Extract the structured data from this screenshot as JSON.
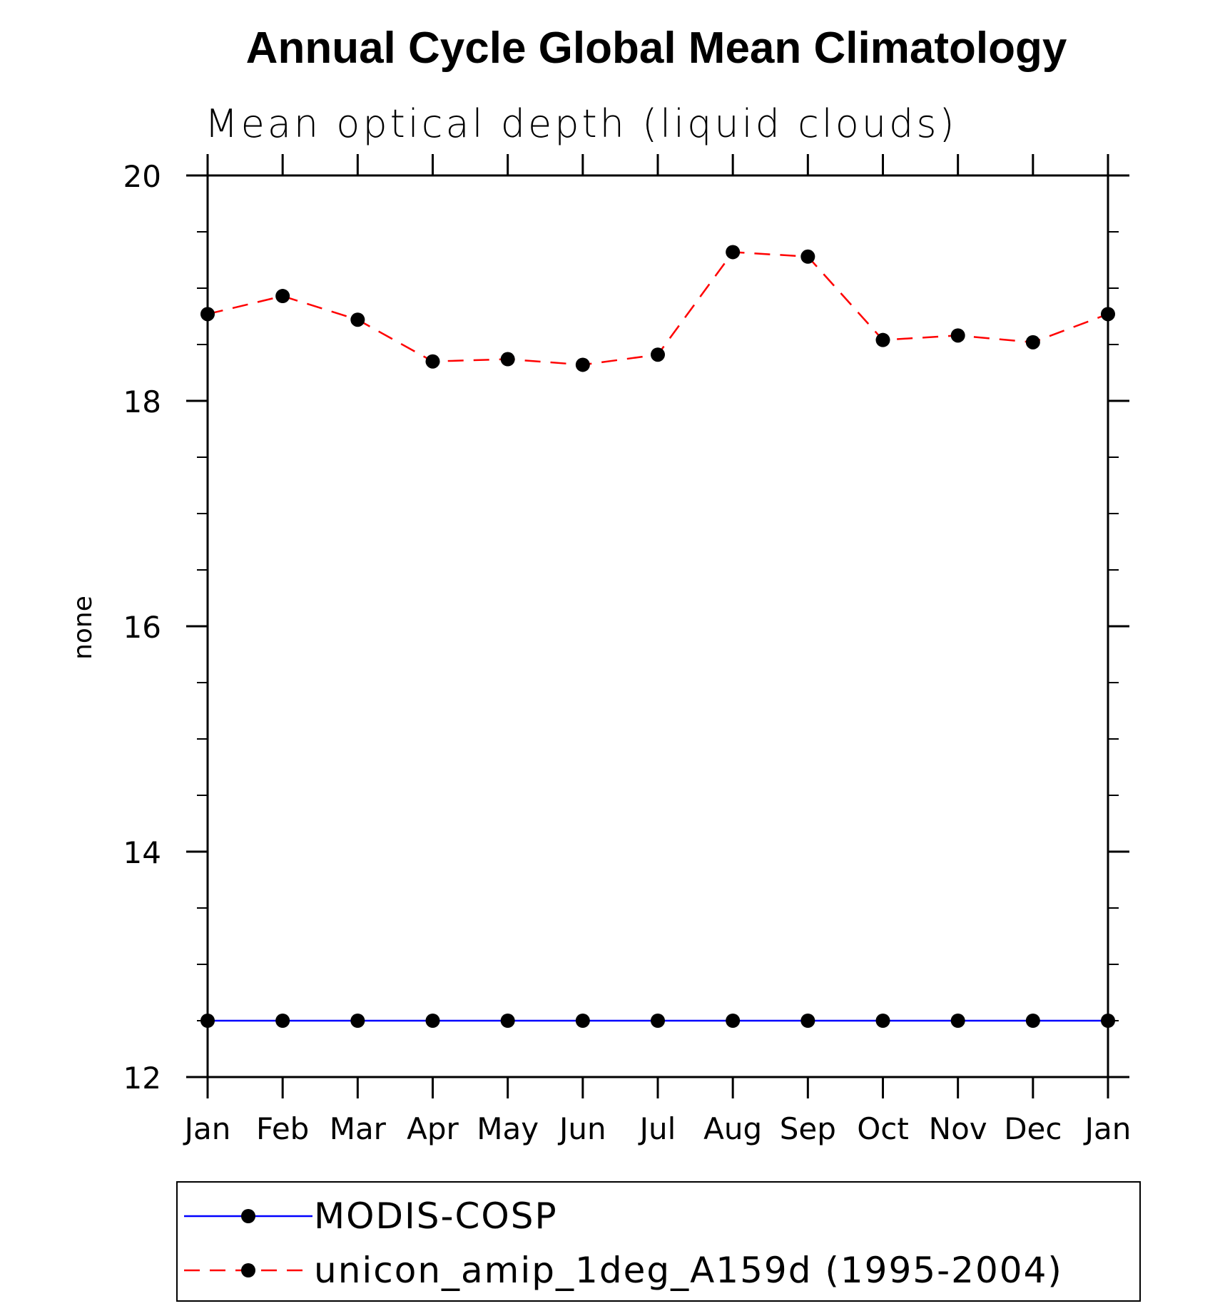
{
  "chart_data": {
    "type": "line",
    "title": "Annual Cycle Global Mean Climatology",
    "subtitle": "Mean optical depth (liquid clouds)",
    "ylabel": "none",
    "xlabel": "",
    "categories": [
      "Jan",
      "Feb",
      "Mar",
      "Apr",
      "May",
      "Jun",
      "Jul",
      "Aug",
      "Sep",
      "Oct",
      "Nov",
      "Dec",
      "Jan"
    ],
    "ylim": [
      12,
      20
    ],
    "yticks": [
      12,
      14,
      16,
      18,
      20
    ],
    "series": [
      {
        "name": "MODIS-COSP",
        "color": "#0000ff",
        "style": "solid",
        "marker": "filled-circle",
        "values": [
          12.5,
          12.5,
          12.5,
          12.5,
          12.5,
          12.5,
          12.5,
          12.5,
          12.5,
          12.5,
          12.5,
          12.5,
          12.5
        ]
      },
      {
        "name": "unicon_amip_1deg_A159d (1995-2004)",
        "color": "#ff0000",
        "style": "dashed",
        "marker": "filled-circle",
        "values": [
          18.77,
          18.93,
          18.72,
          18.35,
          18.37,
          18.32,
          18.41,
          19.32,
          19.28,
          18.54,
          18.58,
          18.52,
          18.77
        ]
      }
    ],
    "grid": false,
    "legend_position": "bottom"
  }
}
